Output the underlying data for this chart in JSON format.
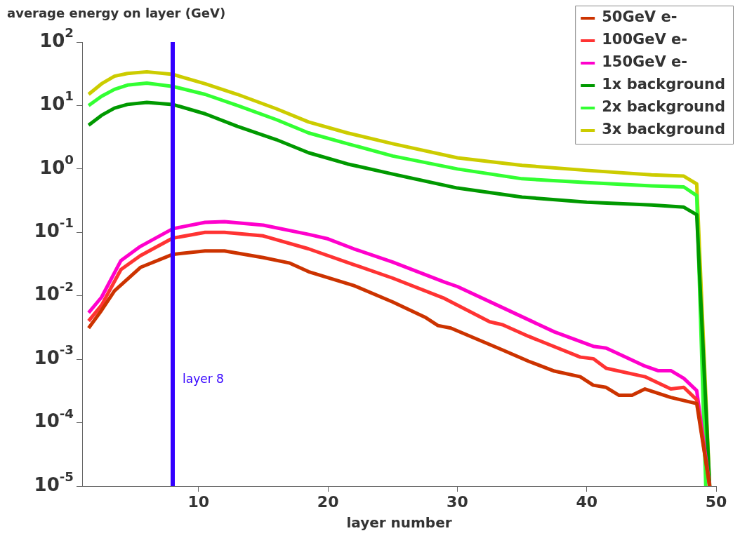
{
  "chart_data": {
    "type": "line",
    "ylabel": "average energy on layer (GeV)",
    "xlabel": "layer number",
    "log": "y",
    "grid": false,
    "legend": "top right",
    "marker": "none",
    "line_style": "solid",
    "xlim": [
      1,
      50
    ],
    "xticks": [
      10,
      20,
      30,
      40,
      50
    ],
    "ylim": [
      1e-05,
      100
    ],
    "yticks": [
      {
        "value": 1e-05,
        "label": "10$^{-5}$"
      },
      {
        "value": 0.0001,
        "label": "10$^{-4}$"
      },
      {
        "value": 0.001,
        "label": "10$^{-3}$"
      },
      {
        "value": 0.01,
        "label": "10$^{-2}$"
      },
      {
        "value": 0.1,
        "label": "10$^{-1}$"
      },
      {
        "value": 1,
        "label": "10$^{0}$"
      },
      {
        "value": 10,
        "label": "10$^{1}$"
      },
      {
        "value": 100,
        "label": "10$^{2}$"
      }
    ],
    "ref_lines": [
      {
        "axis": "x",
        "value": 8,
        "label": "layer 8",
        "color": "#3300ff"
      }
    ],
    "series": [
      {
        "name": "50GeV e-",
        "color": "#cc3300",
        "x": [
          1.5,
          2.5,
          3.5,
          5.5,
          8,
          10.5,
          12,
          15,
          17,
          18.5,
          22,
          25,
          27.5,
          28.5,
          29.5,
          33.5,
          35.5,
          37.5,
          39.5,
          40.5,
          41.5,
          42.5,
          43.5,
          44.5,
          46.5,
          48.5,
          49.5
        ],
        "values": [
          0.0031,
          0.0059,
          0.012,
          0.028,
          0.045,
          0.051,
          0.051,
          0.04,
          0.033,
          0.024,
          0.0145,
          0.008,
          0.0046,
          0.0034,
          0.0031,
          0.0014,
          0.00093,
          0.00065,
          0.00053,
          0.00039,
          0.00036,
          0.00027,
          0.00027,
          0.00034,
          0.00025,
          0.0002,
          1e-05
        ]
      },
      {
        "name": "100GeV e-",
        "color": "#ff3333",
        "x": [
          1.5,
          2.5,
          4,
          5.5,
          8,
          10.5,
          12,
          15,
          18.5,
          22,
          25,
          29,
          32.5,
          33.5,
          35.5,
          39.5,
          40.5,
          41.5,
          44.5,
          46.5,
          47.5,
          48.5,
          49.5
        ],
        "values": [
          0.004,
          0.0071,
          0.026,
          0.043,
          0.081,
          0.1,
          0.1,
          0.088,
          0.055,
          0.031,
          0.019,
          0.0091,
          0.0039,
          0.0035,
          0.0023,
          0.00108,
          0.00102,
          0.00072,
          0.00053,
          0.00034,
          0.00036,
          0.00023,
          1e-05
        ]
      },
      {
        "name": "150GeV e-",
        "color": "#ff00cc",
        "x": [
          1.5,
          2.5,
          4,
          5.5,
          8,
          10.5,
          12,
          15,
          18.5,
          20,
          22,
          25,
          29,
          30,
          33.5,
          37.5,
          40.5,
          41.5,
          44.5,
          45.5,
          46.5,
          47.5,
          48.5,
          49.5
        ],
        "values": [
          0.0054,
          0.0095,
          0.036,
          0.06,
          0.114,
          0.144,
          0.148,
          0.13,
          0.093,
          0.079,
          0.055,
          0.034,
          0.0165,
          0.014,
          0.0065,
          0.0027,
          0.0016,
          0.0015,
          0.00078,
          0.00066,
          0.00066,
          0.0005,
          0.00032,
          1e-05
        ]
      },
      {
        "name": "1x background",
        "color": "#009900",
        "x": [
          1.5,
          2.5,
          3.5,
          4.5,
          6,
          8,
          10.5,
          13,
          16,
          18.5,
          21.5,
          25,
          30,
          35,
          40,
          45,
          47.5,
          48.5,
          49.5
        ],
        "values": [
          4.9,
          7,
          9.1,
          10.4,
          11.2,
          10.4,
          7.4,
          4.7,
          2.9,
          1.8,
          1.2,
          0.83,
          0.5,
          0.36,
          0.3,
          0.27,
          0.25,
          0.19,
          1e-05
        ]
      },
      {
        "name": "2x background",
        "color": "#33ff33",
        "x": [
          1.5,
          2.5,
          3.5,
          4.5,
          6,
          8,
          10.5,
          13,
          16,
          18.5,
          21.5,
          25,
          30,
          35,
          40,
          45,
          47.5,
          48.5,
          49.2
        ],
        "values": [
          10,
          14,
          18,
          21,
          22.5,
          20,
          15,
          10,
          6,
          3.7,
          2.5,
          1.6,
          1,
          0.7,
          0.61,
          0.54,
          0.52,
          0.38,
          1e-05
        ]
      },
      {
        "name": "3x background",
        "color": "#cccc00",
        "x": [
          1.5,
          2.5,
          3.5,
          4.5,
          6,
          8,
          10.5,
          13,
          16,
          18.5,
          21.5,
          25,
          30,
          35,
          40,
          45,
          47.5,
          48.5,
          49.5
        ],
        "values": [
          15,
          22,
          29,
          32,
          34,
          31,
          22,
          15,
          8.9,
          5.5,
          3.7,
          2.5,
          1.5,
          1.14,
          0.95,
          0.81,
          0.77,
          0.58,
          1e-05
        ]
      }
    ]
  }
}
